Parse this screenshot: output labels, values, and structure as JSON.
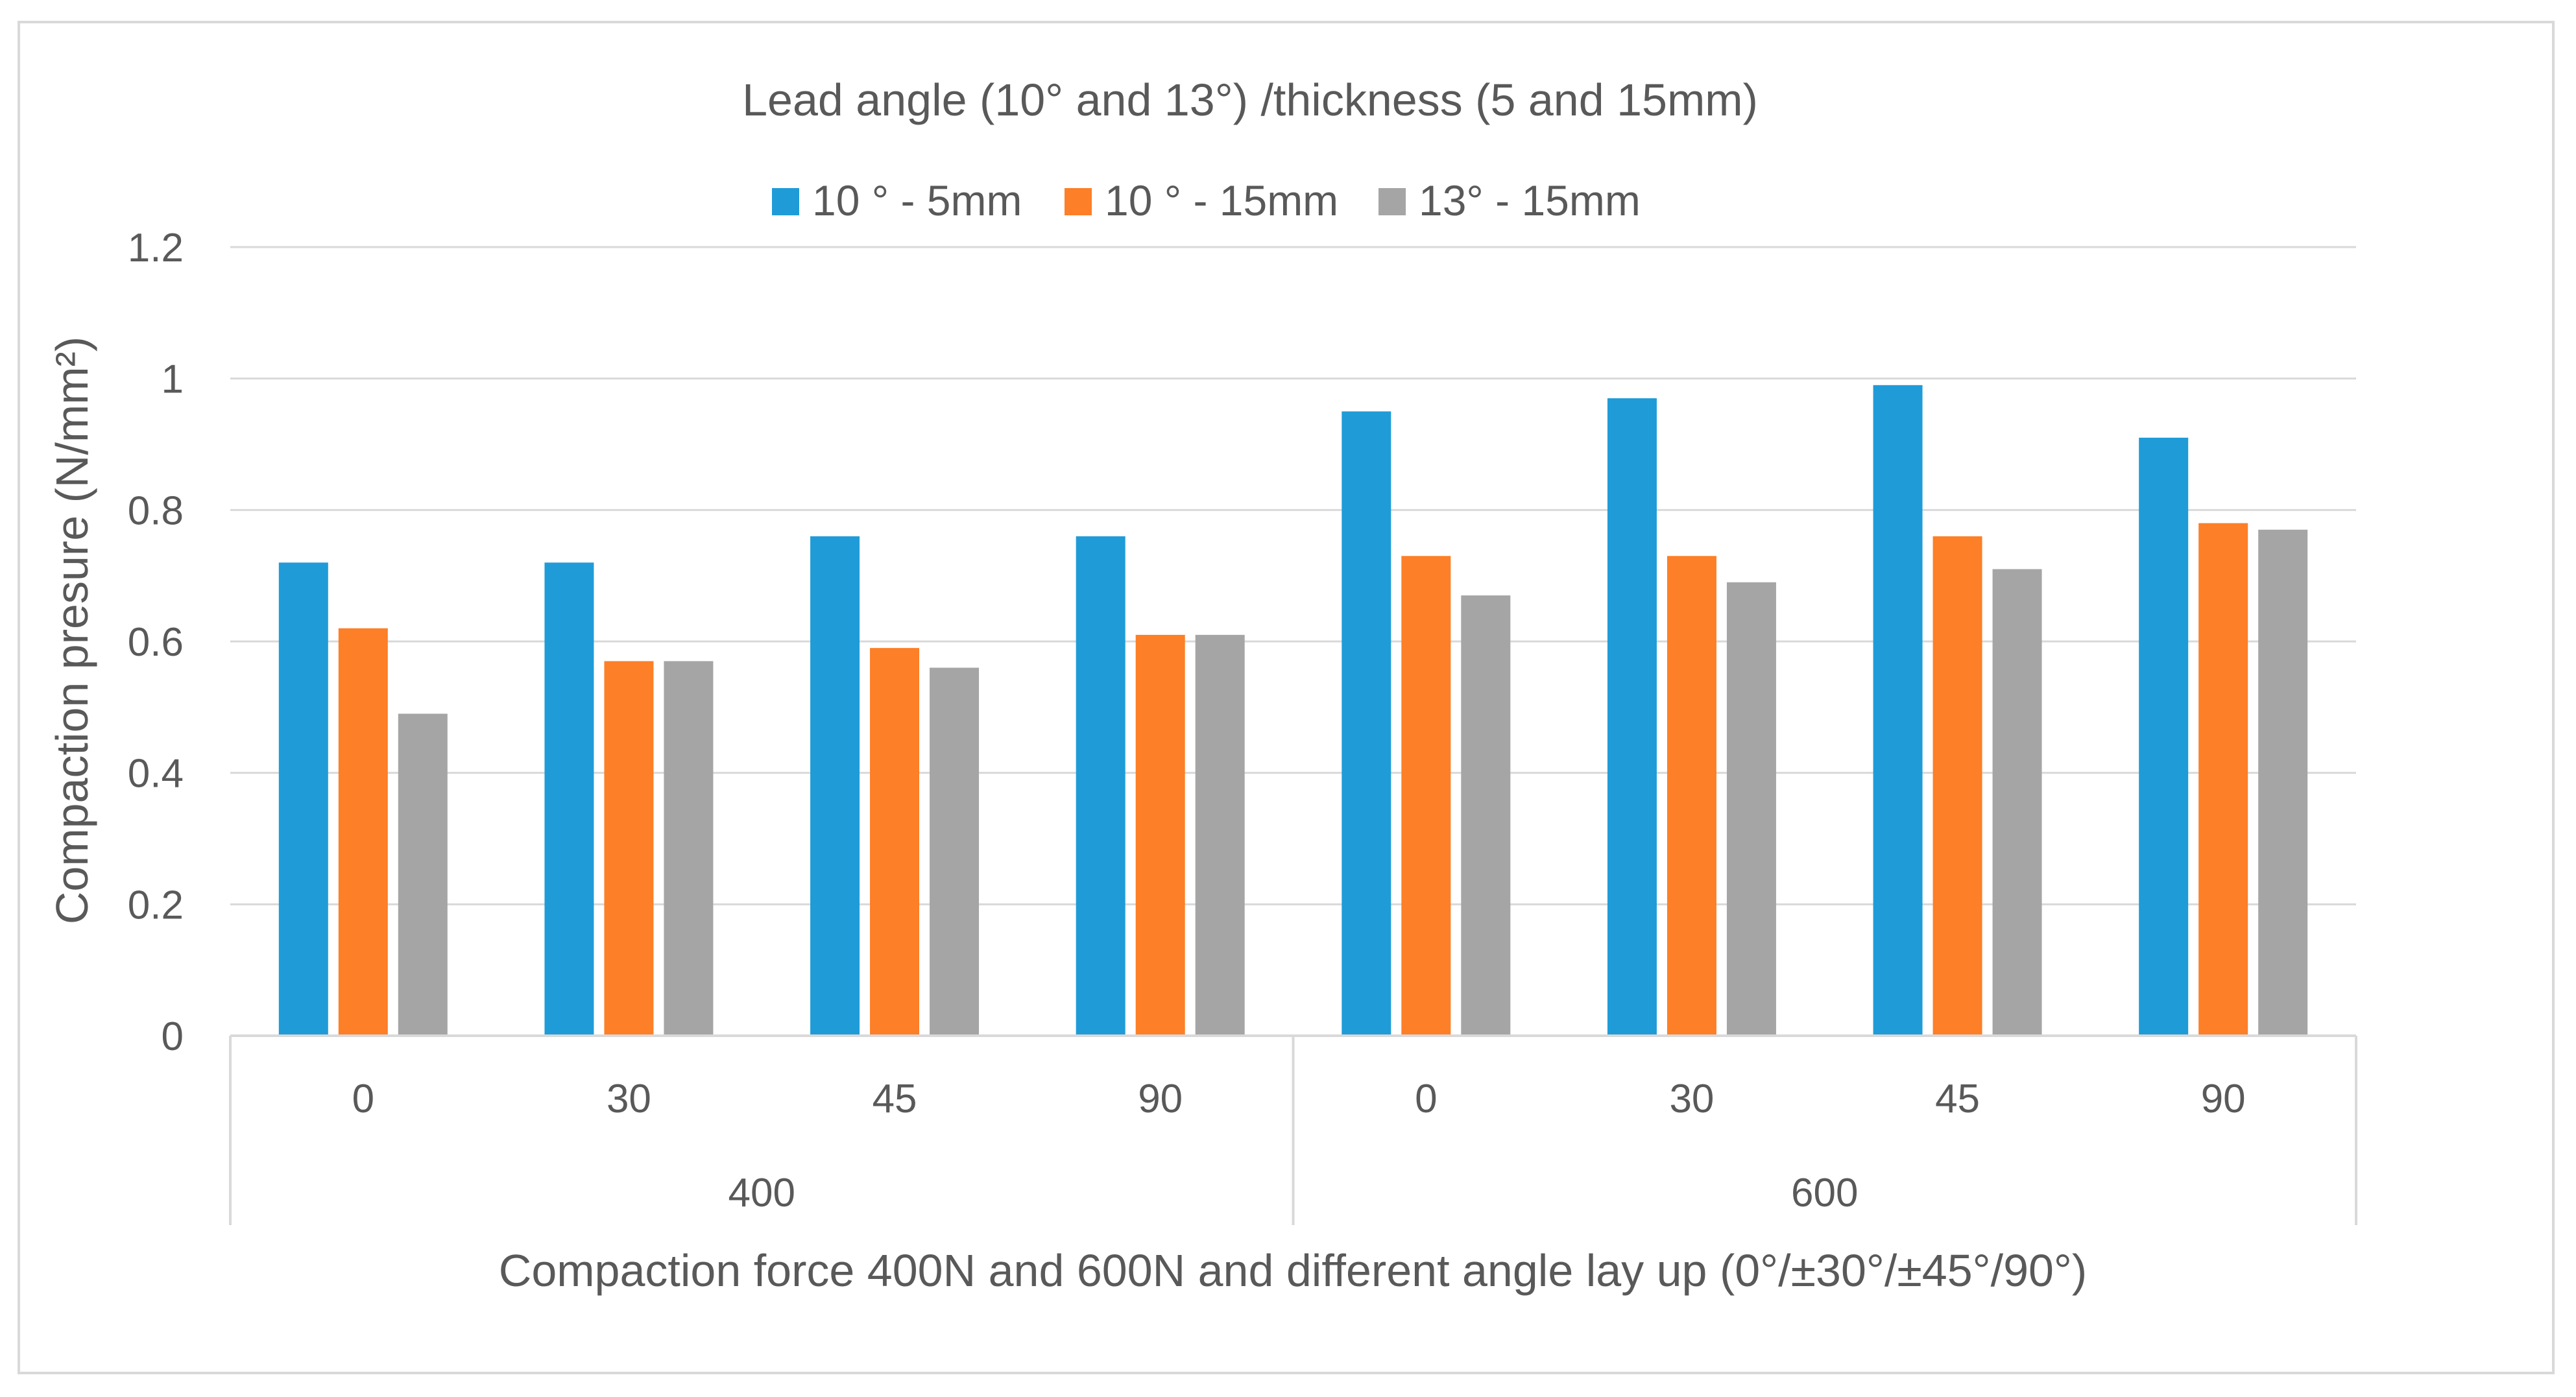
{
  "chart_data": {
    "type": "bar",
    "title": "Lead angle (10° and 13°) /thickness (5 and 15mm)",
    "xlabel": "Compaction force 400N and 600N and different angle lay up (0°/±30°/±45°/90°)",
    "ylabel": "Compaction presure (N/mm²)",
    "ylim": [
      0,
      1.2
    ],
    "yticks": [
      0,
      0.2,
      0.4,
      0.6,
      0.8,
      1,
      1.2
    ],
    "ytick_labels": [
      "0",
      "0.2",
      "0.4",
      "0.6",
      "0.8",
      "1",
      "1.2"
    ],
    "grid": true,
    "legend_position": "top",
    "groups": [
      {
        "label": "400",
        "categories": [
          "0",
          "30",
          "45",
          "90"
        ]
      },
      {
        "label": "600",
        "categories": [
          "0",
          "30",
          "45",
          "90"
        ]
      }
    ],
    "series": [
      {
        "name": "10 ° - 5mm",
        "color": "#1f9cd8",
        "values": [
          0.72,
          0.72,
          0.76,
          0.76,
          0.95,
          0.97,
          0.99,
          0.91
        ]
      },
      {
        "name": "10 ° - 15mm",
        "color": "#fd7f27",
        "values": [
          0.62,
          0.57,
          0.59,
          0.61,
          0.73,
          0.73,
          0.76,
          0.78
        ]
      },
      {
        "name": "13° - 15mm",
        "color": "#a5a5a5",
        "values": [
          0.49,
          0.57,
          0.56,
          0.61,
          0.67,
          0.69,
          0.71,
          0.77
        ]
      }
    ]
  }
}
